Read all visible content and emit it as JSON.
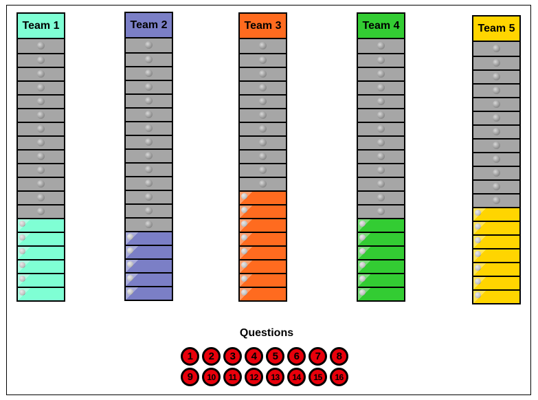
{
  "teams": [
    {
      "name": "Team 1",
      "color": "#7fffd4",
      "total": 19,
      "filled": 6
    },
    {
      "name": "Team 2",
      "color": "#7b7fc6",
      "total": 19,
      "filled": 5
    },
    {
      "name": "Team 3",
      "color": "#ff6b1f",
      "total": 19,
      "filled": 8
    },
    {
      "name": "Team 4",
      "color": "#33cc33",
      "total": 19,
      "filled": 6
    },
    {
      "name": "Team 5",
      "color": "#ffd500",
      "total": 19,
      "filled": 7
    }
  ],
  "questions": {
    "title": "Questions",
    "items": [
      "1",
      "2",
      "3",
      "4",
      "5",
      "6",
      "7",
      "8",
      "9",
      "10",
      "11",
      "12",
      "13",
      "14",
      "15",
      "16"
    ]
  }
}
